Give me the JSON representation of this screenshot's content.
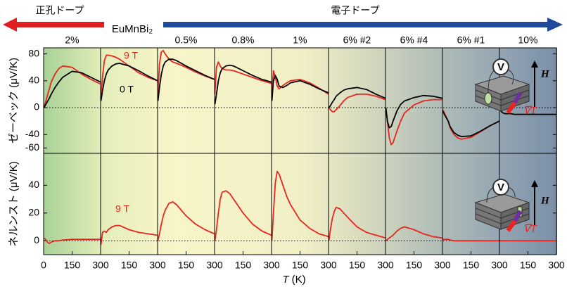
{
  "chart_data": {
    "type": "line",
    "hole_label": "正孔ドープ",
    "electron_label": "電子ドープ",
    "parent_label": "EuMnBi₂",
    "x_label_symbol": "T",
    "x_label_unit": "(K)",
    "seebeck_label": "ゼーベック (μV/K)",
    "nernst_label": "ネルンスト (μV/K)",
    "label_0T": "0 T",
    "label_9T": "9 T",
    "color_0T": "#000000",
    "color_9T": "#e8251f",
    "inset_labels": {
      "voltage": "V",
      "field": "H",
      "gradient": "∇T"
    },
    "x": [
      2,
      10,
      20,
      30,
      40,
      60,
      80,
      100,
      150,
      200,
      250,
      300
    ],
    "xlim": [
      0,
      300
    ],
    "xticks": [
      0,
      150,
      300
    ],
    "seebeck_ylim": [
      -68,
      89
    ],
    "seebeck_yticks": [
      -60,
      -40,
      0,
      40,
      80
    ],
    "nernst_ylim": [
      -10,
      63
    ],
    "nernst_yticks": [
      0,
      20,
      40
    ],
    "panels": [
      {
        "label": "2%",
        "seebeck_0T": [
          0,
          4,
          9,
          14,
          20,
          30,
          38,
          45,
          54,
          52,
          45,
          38
        ],
        "seebeck_9T": [
          2,
          8,
          18,
          28,
          38,
          50,
          58,
          62,
          60,
          50,
          42,
          35
        ],
        "nernst_9T": [
          2,
          1,
          -1,
          -2,
          -1,
          0,
          0,
          0.5,
          1,
          1,
          1,
          1
        ]
      },
      {
        "label": null,
        "seebeck_0T": [
          10,
          25,
          40,
          50,
          56,
          62,
          65,
          66,
          62,
          55,
          47,
          40
        ],
        "seebeck_9T": [
          15,
          45,
          70,
          78,
          78,
          77,
          75,
          72,
          62,
          52,
          45,
          40
        ],
        "nernst_9T": [
          -3,
          6,
          7,
          6,
          8,
          10,
          11,
          11,
          8,
          6,
          5,
          4
        ]
      },
      {
        "label": "0.5%",
        "seebeck_0T": [
          10,
          30,
          50,
          62,
          68,
          72,
          72,
          70,
          62,
          55,
          48,
          42
        ],
        "seebeck_9T": [
          20,
          65,
          83,
          85,
          80,
          72,
          68,
          66,
          60,
          53,
          47,
          42
        ],
        "nernst_9T": [
          0,
          5,
          12,
          18,
          22,
          27,
          28,
          26,
          18,
          12,
          8,
          5
        ]
      },
      {
        "label": "0.8%",
        "seebeck_0T": [
          5,
          20,
          40,
          52,
          58,
          62,
          63,
          62,
          55,
          48,
          42,
          38
        ],
        "seebeck_9T": [
          20,
          60,
          68,
          62,
          58,
          56,
          56,
          55,
          50,
          45,
          40,
          36
        ],
        "nernst_9T": [
          0,
          8,
          20,
          30,
          35,
          36,
          34,
          30,
          20,
          12,
          7,
          4
        ]
      },
      {
        "label": "1%",
        "seebeck_0T": [
          10,
          40,
          48,
          42,
          32,
          30,
          33,
          37,
          40,
          35,
          28,
          22
        ],
        "seebeck_9T": [
          20,
          55,
          45,
          32,
          28,
          33,
          37,
          40,
          42,
          37,
          29,
          20
        ],
        "nernst_9T": [
          0,
          20,
          42,
          50,
          48,
          40,
          32,
          26,
          15,
          9,
          5,
          3
        ]
      },
      {
        "label": "6% #2",
        "seebeck_0T": [
          0,
          3,
          8,
          12,
          17,
          22,
          26,
          28,
          30,
          27,
          20,
          14
        ],
        "seebeck_9T": [
          0,
          -3,
          -6,
          -6,
          -3,
          3,
          10,
          15,
          20,
          20,
          17,
          12
        ],
        "nernst_9T": [
          0,
          8,
          16,
          21,
          24,
          23,
          20,
          17,
          10,
          6,
          4,
          2
        ]
      },
      {
        "label": "6% #4",
        "seebeck_0T": [
          0,
          -20,
          -30,
          -28,
          -20,
          -5,
          5,
          10,
          15,
          18,
          17,
          14
        ],
        "seebeck_9T": [
          0,
          -20,
          -45,
          -55,
          -52,
          -35,
          -20,
          -8,
          4,
          10,
          12,
          12
        ],
        "nernst_9T": [
          0,
          1,
          2,
          3,
          4,
          7,
          9,
          10,
          8,
          5,
          3,
          2
        ]
      },
      {
        "label": "6% #1",
        "seebeck_0T": [
          -5,
          -10,
          -15,
          -20,
          -28,
          -37,
          -41,
          -43,
          -42,
          -35,
          -27,
          -20
        ],
        "seebeck_9T": [
          -3,
          -8,
          -14,
          -20,
          -30,
          -40,
          -45,
          -47,
          -44,
          -36,
          -27,
          -20
        ],
        "nernst_9T": [
          1,
          1,
          1,
          1,
          0.5,
          0,
          0,
          0,
          0,
          0,
          0,
          0
        ]
      },
      {
        "label": "10%",
        "seebeck_0T": [
          0,
          -6,
          -8,
          -9,
          -9,
          -9,
          -10,
          -10,
          -10,
          -10,
          -10,
          -10
        ],
        "seebeck_9T": [
          0,
          -6,
          -8,
          -9,
          -9,
          -9,
          -10,
          -10,
          -10,
          -10,
          -10,
          -10
        ],
        "nernst_9T": [
          0,
          0,
          0,
          0,
          0,
          0,
          0,
          0,
          0,
          0,
          0,
          0
        ]
      }
    ]
  }
}
